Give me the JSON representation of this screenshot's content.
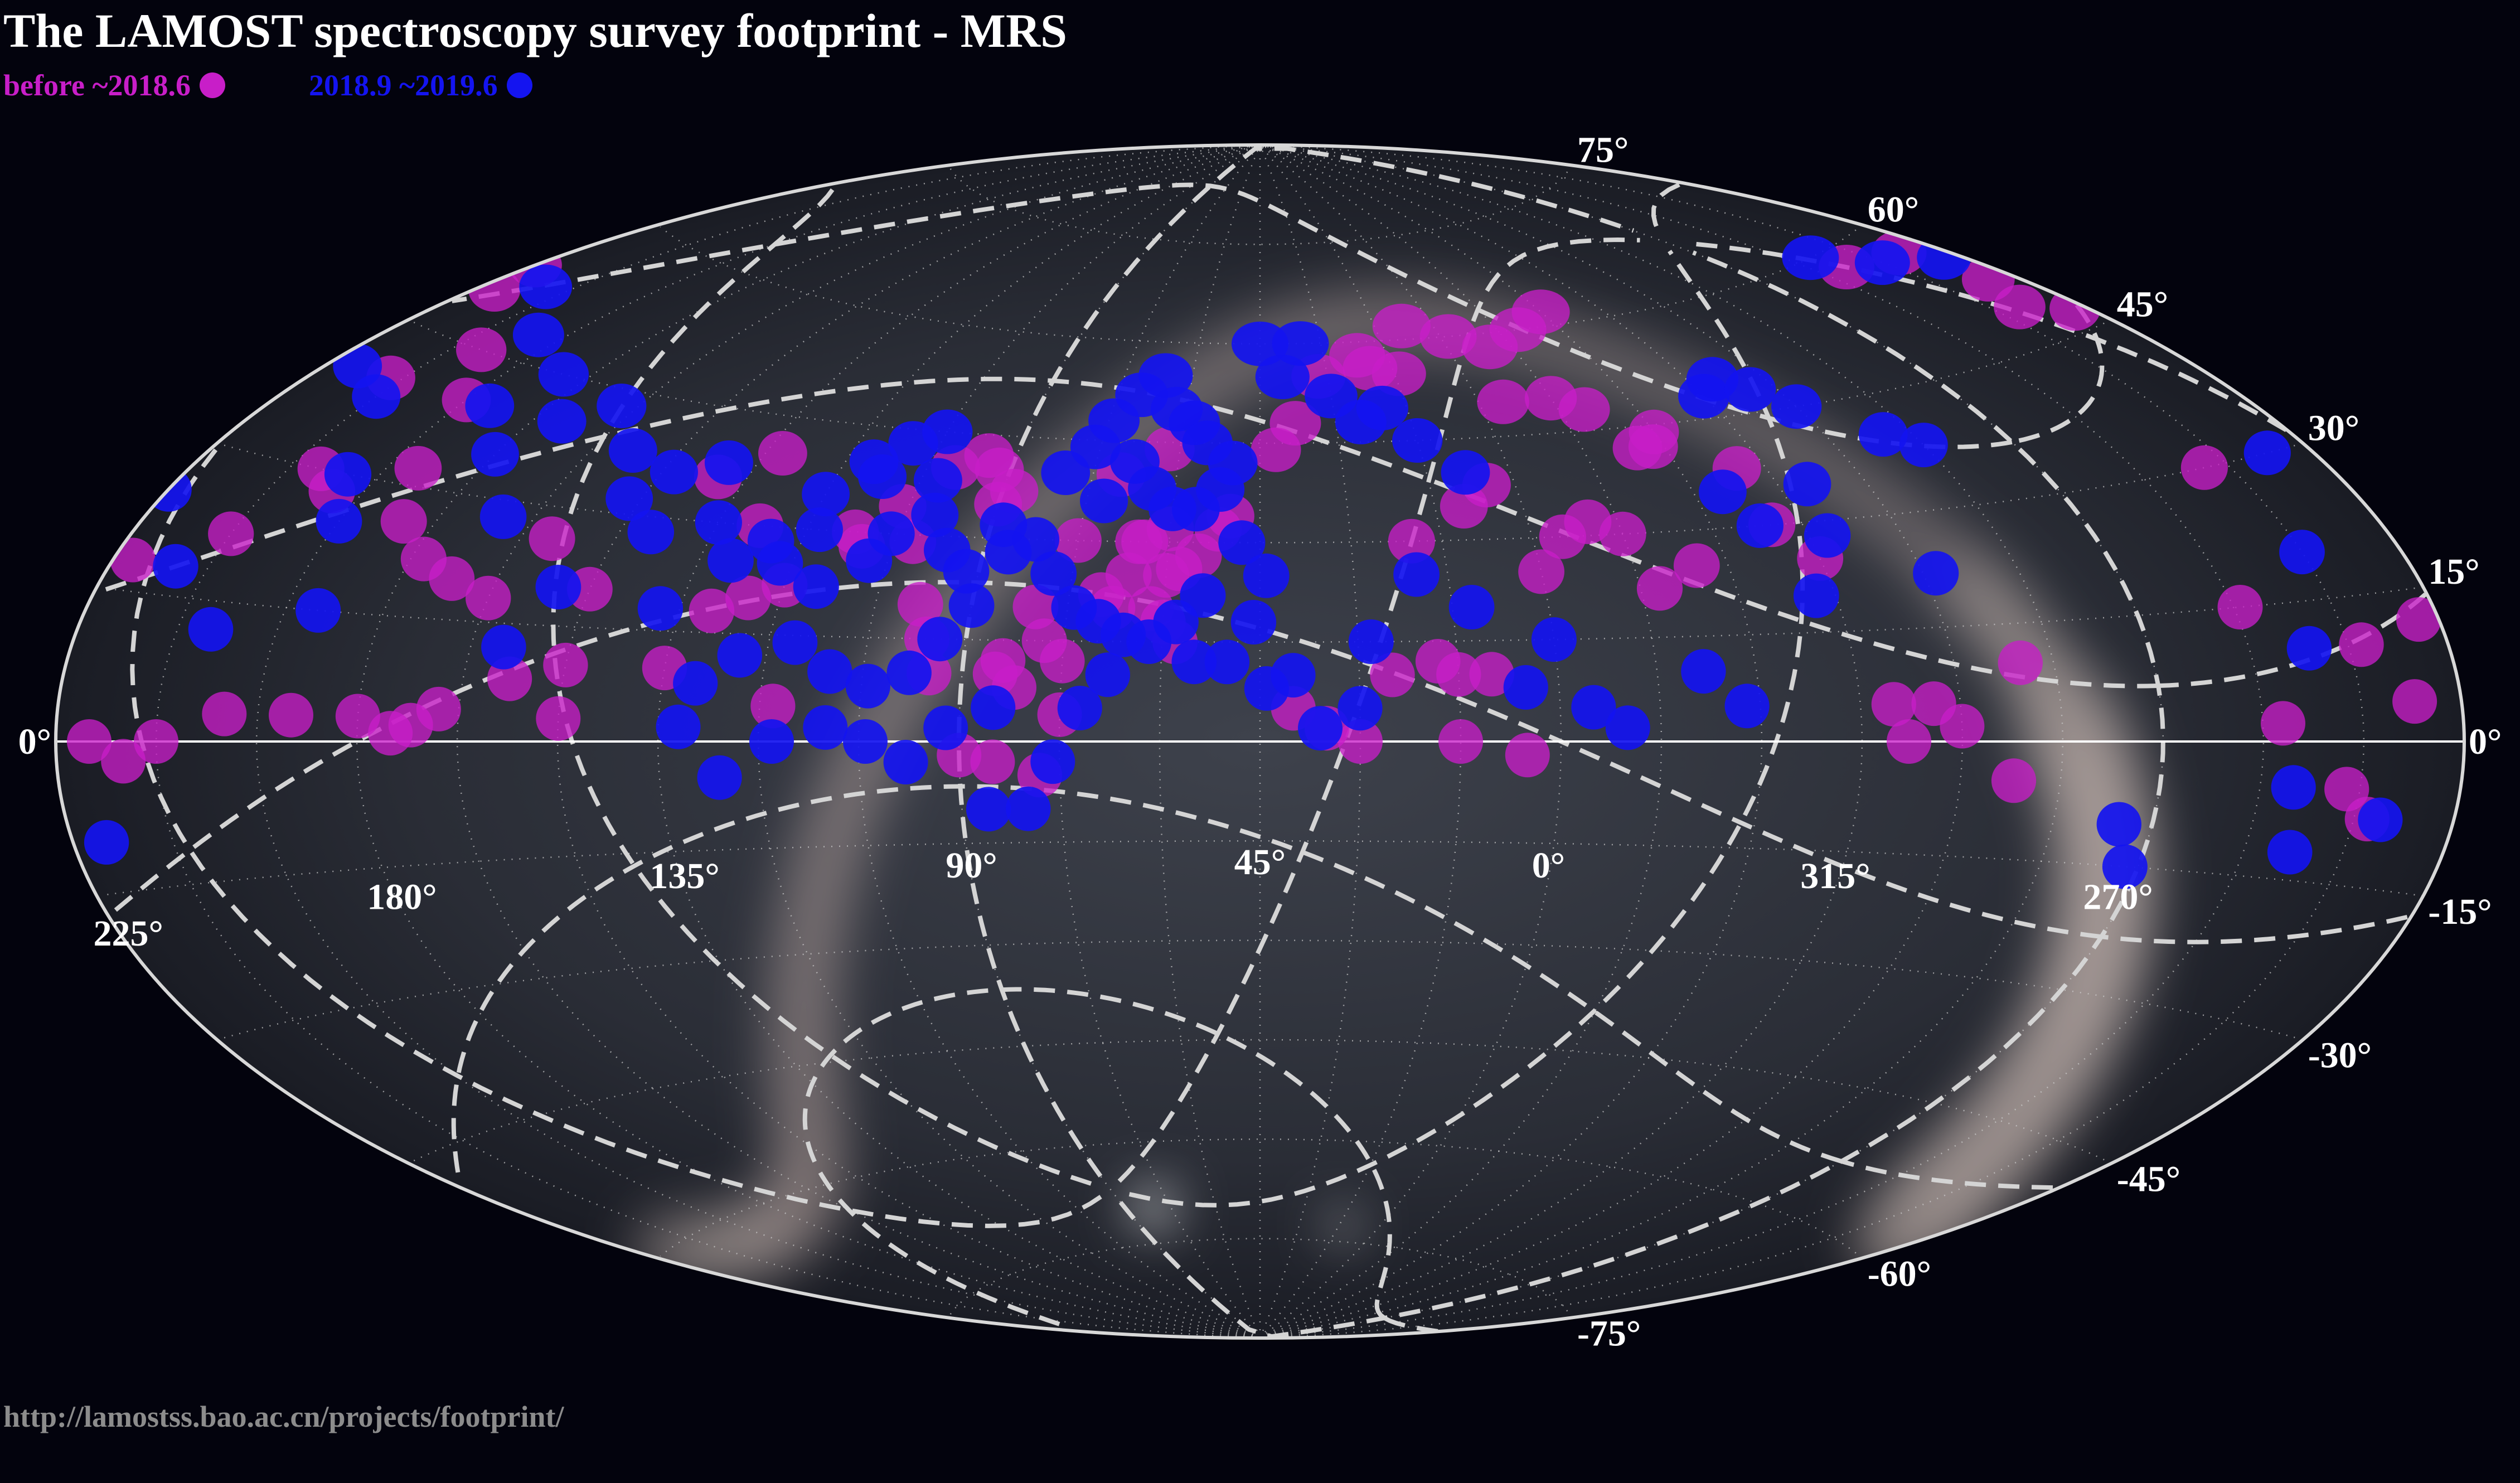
{
  "header": {
    "title": "The LAMOST spectroscopy survey footprint - MRS"
  },
  "footer": {
    "url": "http://lamostss.bao.ac.cn/projects/footprint/"
  },
  "chart_data": {
    "type": "scatter",
    "projection": "Aitoff (all-sky, equatorial)",
    "legend_position": "top-left",
    "series": [
      {
        "name": "before ~2018.6",
        "color": "#c81ec8",
        "points": [
          [
            248,
            58
          ],
          [
            233,
            57
          ],
          [
            230,
            52
          ],
          [
            225,
            53
          ],
          [
            222,
            50
          ],
          [
            235,
            49
          ],
          [
            227,
            47
          ],
          [
            205,
            45
          ],
          [
            195,
            40
          ],
          [
            212,
            40
          ],
          [
            244,
            30
          ],
          [
            254,
            15
          ],
          [
            252,
            2
          ],
          [
            238,
            -8
          ],
          [
            242,
            -5
          ],
          [
            222,
            18
          ],
          [
            210,
            22
          ],
          [
            205,
            30
          ],
          [
            190,
            32
          ],
          [
            200,
            28
          ],
          [
            185,
            26
          ],
          [
            178,
            22
          ],
          [
            172,
            20
          ],
          [
            165,
            18
          ],
          [
            160,
            26
          ],
          [
            150,
            20
          ],
          [
            150,
            10
          ],
          [
            158,
            8
          ],
          [
            168,
            4
          ],
          [
            172,
            2
          ],
          [
            175,
            1
          ],
          [
            180,
            3
          ],
          [
            190,
            3
          ],
          [
            200,
            3
          ],
          [
            210,
            0
          ],
          [
            215,
            -2
          ],
          [
            220,
            0
          ],
          [
            232,
            4
          ],
          [
            238,
            10
          ],
          [
            228,
            12
          ],
          [
            150,
            3
          ],
          [
            135,
            10
          ],
          [
            130,
            18
          ],
          [
            120,
            22
          ],
          [
            112,
            30
          ],
          [
            110,
            28
          ],
          [
            106,
            34
          ],
          [
            102,
            29
          ],
          [
            98,
            20
          ],
          [
            95,
            10
          ],
          [
            96,
            15
          ],
          [
            118,
            5
          ],
          [
            125,
            20
          ],
          [
            128,
            30
          ],
          [
            132,
            40
          ],
          [
            140,
            36
          ],
          [
            100,
            40
          ],
          [
            95,
            42
          ],
          [
            90,
            35
          ],
          [
            92,
            40
          ],
          [
            88,
            37
          ],
          [
            85,
            10
          ],
          [
            80,
            20
          ],
          [
            78,
            15
          ],
          [
            75,
            12
          ],
          [
            70,
            22
          ],
          [
            68,
            20
          ],
          [
            66,
            25
          ],
          [
            64,
            30
          ],
          [
            62,
            20
          ],
          [
            60,
            18
          ],
          [
            58,
            26
          ],
          [
            55,
            28
          ],
          [
            58,
            15
          ],
          [
            52,
            32
          ],
          [
            50,
            34
          ],
          [
            60,
            32
          ],
          [
            62,
            44
          ],
          [
            65,
            30
          ],
          [
            70,
            40
          ],
          [
            75,
            30
          ],
          [
            75,
            4
          ],
          [
            82,
            8
          ],
          [
            84,
            12
          ],
          [
            85,
            -3
          ],
          [
            78,
            -5
          ],
          [
            90,
            -2
          ],
          [
            42,
            44
          ],
          [
            38,
            48
          ],
          [
            32,
            55
          ],
          [
            22,
            58
          ],
          [
            8,
            62
          ],
          [
            20,
            56
          ],
          [
            14,
            55
          ],
          [
            -2,
            60
          ],
          [
            -10,
            58
          ],
          [
            -5,
            50
          ],
          [
            -15,
            50
          ],
          [
            -20,
            48
          ],
          [
            -25,
            42
          ],
          [
            -28,
            42
          ],
          [
            -30,
            44
          ],
          [
            -40,
            38
          ],
          [
            -40,
            30
          ],
          [
            -45,
            25
          ],
          [
            -50,
            5
          ],
          [
            -52,
            0
          ],
          [
            -56,
            5
          ],
          [
            -60,
            2
          ],
          [
            -68,
            -5
          ],
          [
            -70,
            10
          ],
          [
            -25,
            25
          ],
          [
            -18,
            22
          ],
          [
            -15,
            30
          ],
          [
            -10,
            32
          ],
          [
            -5,
            30
          ],
          [
            5,
            38
          ],
          [
            10,
            35
          ],
          [
            0,
            25
          ],
          [
            20,
            30
          ],
          [
            25,
            10
          ],
          [
            18,
            12
          ],
          [
            15,
            10
          ],
          [
            10,
            10
          ],
          [
            15,
            0
          ],
          [
            5,
            -2
          ],
          [
            40,
            5
          ],
          [
            35,
            2
          ],
          [
            30,
            0
          ],
          [
            60,
            25
          ],
          [
            -30,
            62
          ],
          [
            -20,
            60
          ]
        ]
      },
      {
        "name": "2018.9 ~2019.6",
        "color": "#1414f0",
        "points": [
          [
            250,
            60
          ],
          [
            240,
            57
          ],
          [
            228,
            55
          ],
          [
            215,
            52
          ],
          [
            200,
            48
          ],
          [
            185,
            45
          ],
          [
            175,
            40
          ],
          [
            168,
            43
          ],
          [
            158,
            38
          ],
          [
            152,
            32
          ],
          [
            148,
            36
          ],
          [
            140,
            38
          ],
          [
            135,
            30
          ],
          [
            130,
            25
          ],
          [
            125,
            28
          ],
          [
            120,
            35
          ],
          [
            115,
            40
          ],
          [
            110,
            43
          ],
          [
            105,
            45
          ],
          [
            112,
            38
          ],
          [
            118,
            30
          ],
          [
            122,
            25
          ],
          [
            115,
            22
          ],
          [
            108,
            26
          ],
          [
            106,
            30
          ],
          [
            100,
            33
          ],
          [
            102,
            38
          ],
          [
            96,
            28
          ],
          [
            92,
            25
          ],
          [
            90,
            20
          ],
          [
            88,
            32
          ],
          [
            86,
            28
          ],
          [
            94,
            15
          ],
          [
            98,
            10
          ],
          [
            104,
            8
          ],
          [
            110,
            10
          ],
          [
            116,
            14
          ],
          [
            124,
            12
          ],
          [
            130,
            8
          ],
          [
            132,
            2
          ],
          [
            126,
            -5
          ],
          [
            118,
            0
          ],
          [
            110,
            2
          ],
          [
            104,
            0
          ],
          [
            98,
            -3
          ],
          [
            92,
            2
          ],
          [
            85,
            5
          ],
          [
            86,
            -10
          ],
          [
            80,
            -10
          ],
          [
            76,
            -3
          ],
          [
            72,
            5
          ],
          [
            68,
            10
          ],
          [
            66,
            16
          ],
          [
            70,
            18
          ],
          [
            74,
            20
          ],
          [
            78,
            25
          ],
          [
            82,
            30
          ],
          [
            80,
            40
          ],
          [
            76,
            44
          ],
          [
            74,
            48
          ],
          [
            70,
            52
          ],
          [
            66,
            55
          ],
          [
            62,
            50
          ],
          [
            58,
            48
          ],
          [
            55,
            45
          ],
          [
            50,
            42
          ],
          [
            52,
            38
          ],
          [
            56,
            35
          ],
          [
            60,
            35
          ],
          [
            64,
            38
          ],
          [
            68,
            42
          ],
          [
            72,
            36
          ],
          [
            48,
            30
          ],
          [
            44,
            25
          ],
          [
            46,
            18
          ],
          [
            54,
            22
          ],
          [
            58,
            18
          ],
          [
            62,
            15
          ],
          [
            55,
            12
          ],
          [
            50,
            12
          ],
          [
            44,
            8
          ],
          [
            40,
            10
          ],
          [
            36,
            2
          ],
          [
            30,
            5
          ],
          [
            28,
            15
          ],
          [
            20,
            25
          ],
          [
            12,
            20
          ],
          [
            5,
            8
          ],
          [
            0,
            15
          ],
          [
            -5,
            5
          ],
          [
            -10,
            2
          ],
          [
            -22,
            10
          ],
          [
            -28,
            5
          ],
          [
            -35,
            35
          ],
          [
            -38,
            30
          ],
          [
            -42,
            20
          ],
          [
            -45,
            48
          ],
          [
            -50,
            50
          ],
          [
            -55,
            48
          ],
          [
            -60,
            45
          ],
          [
            -70,
            40
          ],
          [
            -75,
            38
          ],
          [
            -85,
            -10
          ],
          [
            -88,
            -15
          ],
          [
            -62,
            22
          ],
          [
            -50,
            35
          ],
          [
            -48,
            28
          ],
          [
            8,
            40
          ],
          [
            15,
            45
          ],
          [
            25,
            48
          ],
          [
            30,
            52
          ],
          [
            40,
            55
          ],
          [
            45,
            60
          ],
          [
            35,
            60
          ],
          [
            20,
            50
          ],
          [
            200,
            30
          ],
          [
            195,
            25
          ],
          [
            190,
            15
          ],
          [
            205,
            12
          ],
          [
            215,
            18
          ],
          [
            225,
            25
          ],
          [
            232,
            30
          ],
          [
            240,
            20
          ],
          [
            246,
            10
          ],
          [
            250,
            -5
          ],
          [
            248,
            -12
          ],
          [
            236,
            -8
          ],
          [
            220,
            -10
          ],
          [
            160,
            12
          ],
          [
            155,
            20
          ],
          [
            145,
            28
          ],
          [
            138,
            18
          ],
          [
            170,
            28
          ],
          [
            180,
            35
          ],
          [
            190,
            40
          ],
          [
            210,
            38
          ],
          [
            220,
            40
          ]
        ]
      }
    ],
    "ra_ticks": [
      "225°",
      "180°",
      "135°",
      "90°",
      "45°",
      "0°",
      "315°",
      "270°"
    ],
    "dec_ticks": [
      "0°",
      "15°",
      "30°",
      "45°",
      "60°",
      "75°",
      "-15°",
      "-30°",
      "-45°",
      "-60°",
      "-75°"
    ],
    "ra_tick_values": [
      225,
      180,
      135,
      90,
      45,
      0,
      315,
      270
    ],
    "dec_tick_values": [
      0,
      15,
      30,
      45,
      60,
      75,
      -15,
      -30,
      -45,
      -60,
      -75
    ],
    "reference_lines": [
      "celestial equator",
      "dashed RA/Dec graticule",
      "dotted fine grid"
    ],
    "background": "Milky Way all-sky image"
  }
}
